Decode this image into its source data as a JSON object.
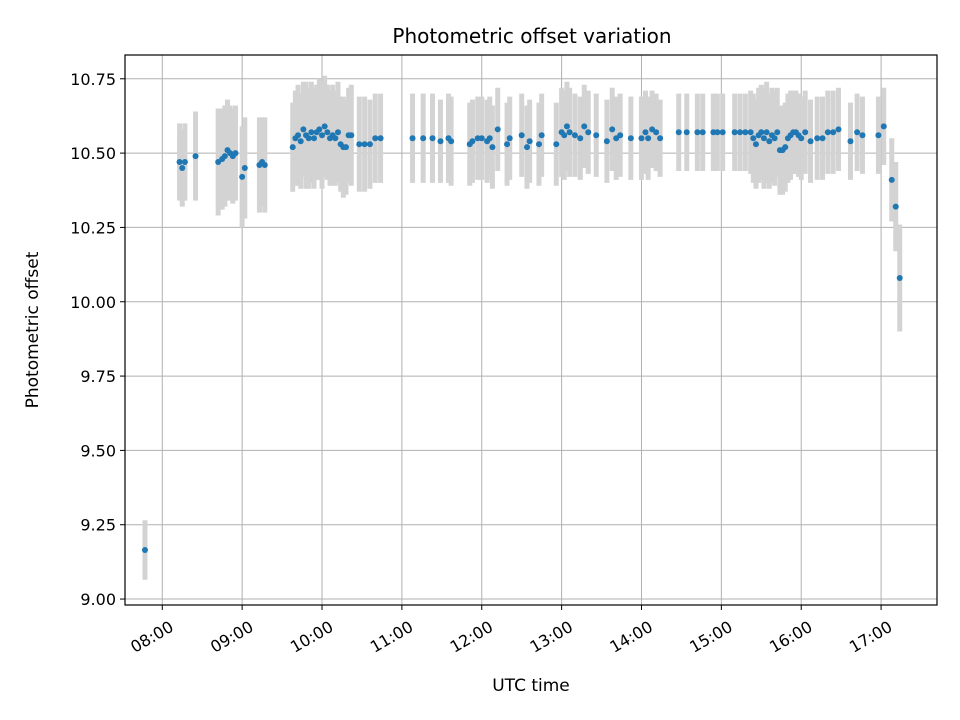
{
  "chart_data": {
    "type": "scatter",
    "title": "Photometric offset variation",
    "xlabel": "UTC time",
    "ylabel": "Photometric offset",
    "grid": true,
    "x_unit": "UTC hour",
    "xlim": [
      "07:32",
      "17:42"
    ],
    "ylim": [
      8.98,
      10.83
    ],
    "x_ticks": [
      "08:00",
      "09:00",
      "10:00",
      "11:00",
      "12:00",
      "13:00",
      "14:00",
      "15:00",
      "16:00",
      "17:00"
    ],
    "y_ticks": [
      "9.00",
      "9.25",
      "9.50",
      "9.75",
      "10.00",
      "10.25",
      "10.50",
      "10.75"
    ],
    "colors": {
      "point": "#1f77b4",
      "errorbar": "#d3d3d3",
      "grid": "#b0b0b0"
    },
    "points": [
      [
        "07:47",
        9.165,
        0.1
      ],
      [
        "08:13",
        10.47,
        0.13
      ],
      [
        "08:15",
        10.45,
        0.13
      ],
      [
        "08:17",
        10.47,
        0.13
      ],
      [
        "08:25",
        10.49,
        0.15
      ],
      [
        "08:42",
        10.47,
        0.18
      ],
      [
        "08:45",
        10.48,
        0.17
      ],
      [
        "08:47",
        10.49,
        0.17
      ],
      [
        "08:49",
        10.51,
        0.17
      ],
      [
        "08:51",
        10.5,
        0.16
      ],
      [
        "08:53",
        10.49,
        0.16
      ],
      [
        "08:55",
        10.5,
        0.16
      ],
      [
        "09:00",
        10.42,
        0.17
      ],
      [
        "09:02",
        10.45,
        0.17
      ],
      [
        "09:13",
        10.46,
        0.16
      ],
      [
        "09:15",
        10.47,
        0.15
      ],
      [
        "09:17",
        10.46,
        0.16
      ],
      [
        "09:38",
        10.52,
        0.15
      ],
      [
        "09:40",
        10.55,
        0.16
      ],
      [
        "09:42",
        10.56,
        0.17
      ],
      [
        "09:44",
        10.54,
        0.16
      ],
      [
        "09:46",
        10.58,
        0.16
      ],
      [
        "09:48",
        10.56,
        0.18
      ],
      [
        "09:50",
        10.55,
        0.17
      ],
      [
        "09:52",
        10.57,
        0.17
      ],
      [
        "09:54",
        10.55,
        0.17
      ],
      [
        "09:56",
        10.57,
        0.16
      ],
      [
        "09:58",
        10.58,
        0.17
      ],
      [
        "10:00",
        10.56,
        0.18
      ],
      [
        "10:02",
        10.59,
        0.17
      ],
      [
        "10:04",
        10.57,
        0.16
      ],
      [
        "10:06",
        10.55,
        0.16
      ],
      [
        "10:08",
        10.56,
        0.17
      ],
      [
        "10:10",
        10.55,
        0.16
      ],
      [
        "10:12",
        10.57,
        0.17
      ],
      [
        "10:14",
        10.53,
        0.16
      ],
      [
        "10:16",
        10.52,
        0.17
      ],
      [
        "10:18",
        10.52,
        0.16
      ],
      [
        "10:20",
        10.56,
        0.16
      ],
      [
        "10:22",
        10.56,
        0.17
      ],
      [
        "10:28",
        10.53,
        0.16
      ],
      [
        "10:32",
        10.53,
        0.16
      ],
      [
        "10:36",
        10.53,
        0.15
      ],
      [
        "10:40",
        10.55,
        0.15
      ],
      [
        "10:44",
        10.55,
        0.15
      ],
      [
        "11:08",
        10.55,
        0.15
      ],
      [
        "11:16",
        10.55,
        0.15
      ],
      [
        "11:23",
        10.55,
        0.15
      ],
      [
        "11:29",
        10.54,
        0.14
      ],
      [
        "11:35",
        10.55,
        0.15
      ],
      [
        "11:37",
        10.54,
        0.15
      ],
      [
        "11:51",
        10.53,
        0.14
      ],
      [
        "11:53",
        10.54,
        0.14
      ],
      [
        "11:57",
        10.55,
        0.14
      ],
      [
        "12:00",
        10.55,
        0.14
      ],
      [
        "12:04",
        10.54,
        0.14
      ],
      [
        "12:06",
        10.55,
        0.14
      ],
      [
        "12:08",
        10.52,
        0.14
      ],
      [
        "12:12",
        10.58,
        0.14
      ],
      [
        "12:19",
        10.53,
        0.14
      ],
      [
        "12:21",
        10.55,
        0.14
      ],
      [
        "12:30",
        10.56,
        0.14
      ],
      [
        "12:34",
        10.52,
        0.14
      ],
      [
        "12:36",
        10.54,
        0.14
      ],
      [
        "12:43",
        10.53,
        0.14
      ],
      [
        "12:45",
        10.56,
        0.14
      ],
      [
        "12:56",
        10.53,
        0.14
      ],
      [
        "13:00",
        10.57,
        0.15
      ],
      [
        "13:02",
        10.56,
        0.15
      ],
      [
        "13:04",
        10.59,
        0.15
      ],
      [
        "13:06",
        10.57,
        0.15
      ],
      [
        "13:10",
        10.56,
        0.14
      ],
      [
        "13:14",
        10.55,
        0.14
      ],
      [
        "13:17",
        10.59,
        0.14
      ],
      [
        "13:20",
        10.57,
        0.14
      ],
      [
        "13:26",
        10.56,
        0.14
      ],
      [
        "13:34",
        10.54,
        0.14
      ],
      [
        "13:38",
        10.58,
        0.14
      ],
      [
        "13:41",
        10.55,
        0.14
      ],
      [
        "13:44",
        10.56,
        0.14
      ],
      [
        "13:52",
        10.55,
        0.14
      ],
      [
        "14:00",
        10.55,
        0.14
      ],
      [
        "14:03",
        10.57,
        0.14
      ],
      [
        "14:05",
        10.55,
        0.14
      ],
      [
        "14:08",
        10.58,
        0.13
      ],
      [
        "14:11",
        10.57,
        0.13
      ],
      [
        "14:14",
        10.55,
        0.13
      ],
      [
        "14:28",
        10.57,
        0.13
      ],
      [
        "14:34",
        10.57,
        0.13
      ],
      [
        "14:42",
        10.57,
        0.13
      ],
      [
        "14:46",
        10.57,
        0.13
      ],
      [
        "14:54",
        10.57,
        0.13
      ],
      [
        "14:57",
        10.57,
        0.13
      ],
      [
        "15:01",
        10.57,
        0.13
      ],
      [
        "15:10",
        10.57,
        0.13
      ],
      [
        "15:14",
        10.57,
        0.13
      ],
      [
        "15:18",
        10.57,
        0.13
      ],
      [
        "15:22",
        10.57,
        0.14
      ],
      [
        "15:24",
        10.55,
        0.15
      ],
      [
        "15:26",
        10.53,
        0.15
      ],
      [
        "15:28",
        10.56,
        0.16
      ],
      [
        "15:30",
        10.57,
        0.16
      ],
      [
        "15:32",
        10.55,
        0.17
      ],
      [
        "15:34",
        10.57,
        0.17
      ],
      [
        "15:36",
        10.54,
        0.16
      ],
      [
        "15:38",
        10.56,
        0.16
      ],
      [
        "15:40",
        10.55,
        0.16
      ],
      [
        "15:42",
        10.57,
        0.15
      ],
      [
        "15:44",
        10.51,
        0.15
      ],
      [
        "15:46",
        10.51,
        0.15
      ],
      [
        "15:48",
        10.52,
        0.15
      ],
      [
        "15:50",
        10.55,
        0.15
      ],
      [
        "15:52",
        10.56,
        0.15
      ],
      [
        "15:54",
        10.57,
        0.14
      ],
      [
        "15:56",
        10.57,
        0.14
      ],
      [
        "15:58",
        10.56,
        0.14
      ],
      [
        "16:00",
        10.55,
        0.14
      ],
      [
        "16:03",
        10.57,
        0.14
      ],
      [
        "16:07",
        10.54,
        0.14
      ],
      [
        "16:12",
        10.55,
        0.14
      ],
      [
        "16:16",
        10.55,
        0.14
      ],
      [
        "16:20",
        10.57,
        0.14
      ],
      [
        "16:24",
        10.57,
        0.14
      ],
      [
        "16:28",
        10.58,
        0.14
      ],
      [
        "16:37",
        10.54,
        0.13
      ],
      [
        "16:42",
        10.57,
        0.13
      ],
      [
        "16:46",
        10.56,
        0.13
      ],
      [
        "16:58",
        10.56,
        0.13
      ],
      [
        "17:02",
        10.59,
        0.13
      ],
      [
        "17:08",
        10.41,
        0.14
      ],
      [
        "17:11",
        10.32,
        0.15
      ],
      [
        "17:14",
        10.08,
        0.18
      ]
    ]
  }
}
